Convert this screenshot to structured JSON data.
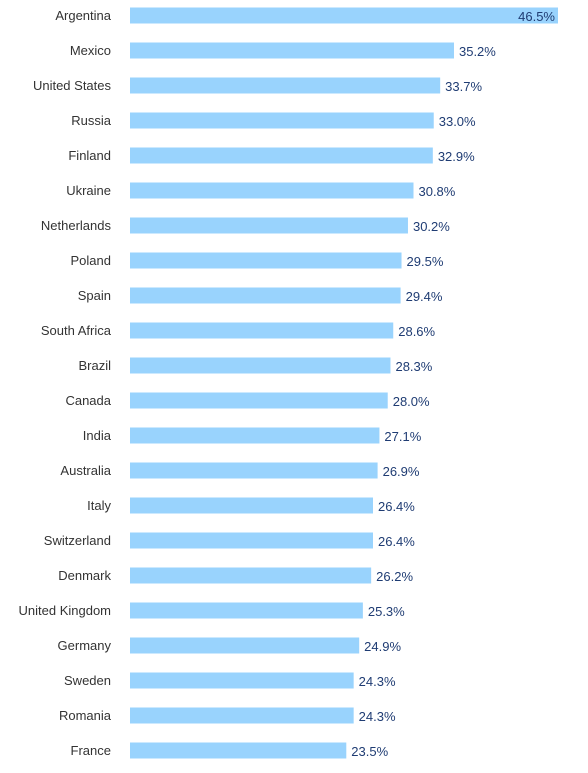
{
  "colors": {
    "bar": "#99d3fd",
    "value_text": "#1f3c73",
    "category_text": "#333333"
  },
  "chart_data": {
    "type": "bar",
    "orientation": "horizontal",
    "categories": [
      "Argentina",
      "Mexico",
      "United States",
      "Russia",
      "Finland",
      "Ukraine",
      "Netherlands",
      "Poland",
      "Spain",
      "South Africa",
      "Brazil",
      "Canada",
      "India",
      "Australia",
      "Italy",
      "Switzerland",
      "Denmark",
      "United Kingdom",
      "Germany",
      "Sweden",
      "Romania",
      "France"
    ],
    "values": [
      46.5,
      35.2,
      33.7,
      33.0,
      32.9,
      30.8,
      30.2,
      29.5,
      29.4,
      28.6,
      28.3,
      28.0,
      27.1,
      26.9,
      26.4,
      26.4,
      26.2,
      25.3,
      24.9,
      24.3,
      24.3,
      23.5
    ],
    "value_labels": [
      "46.5%",
      "35.2%",
      "33.7%",
      "33.0%",
      "32.9%",
      "30.8%",
      "30.2%",
      "29.5%",
      "29.4%",
      "28.6%",
      "28.3%",
      "28.0%",
      "27.1%",
      "26.9%",
      "26.4%",
      "26.4%",
      "26.2%",
      "25.3%",
      "24.9%",
      "24.3%",
      "24.3%",
      "23.5%"
    ],
    "xlim": [
      0,
      46.5
    ],
    "grid": false,
    "legend": "none"
  }
}
